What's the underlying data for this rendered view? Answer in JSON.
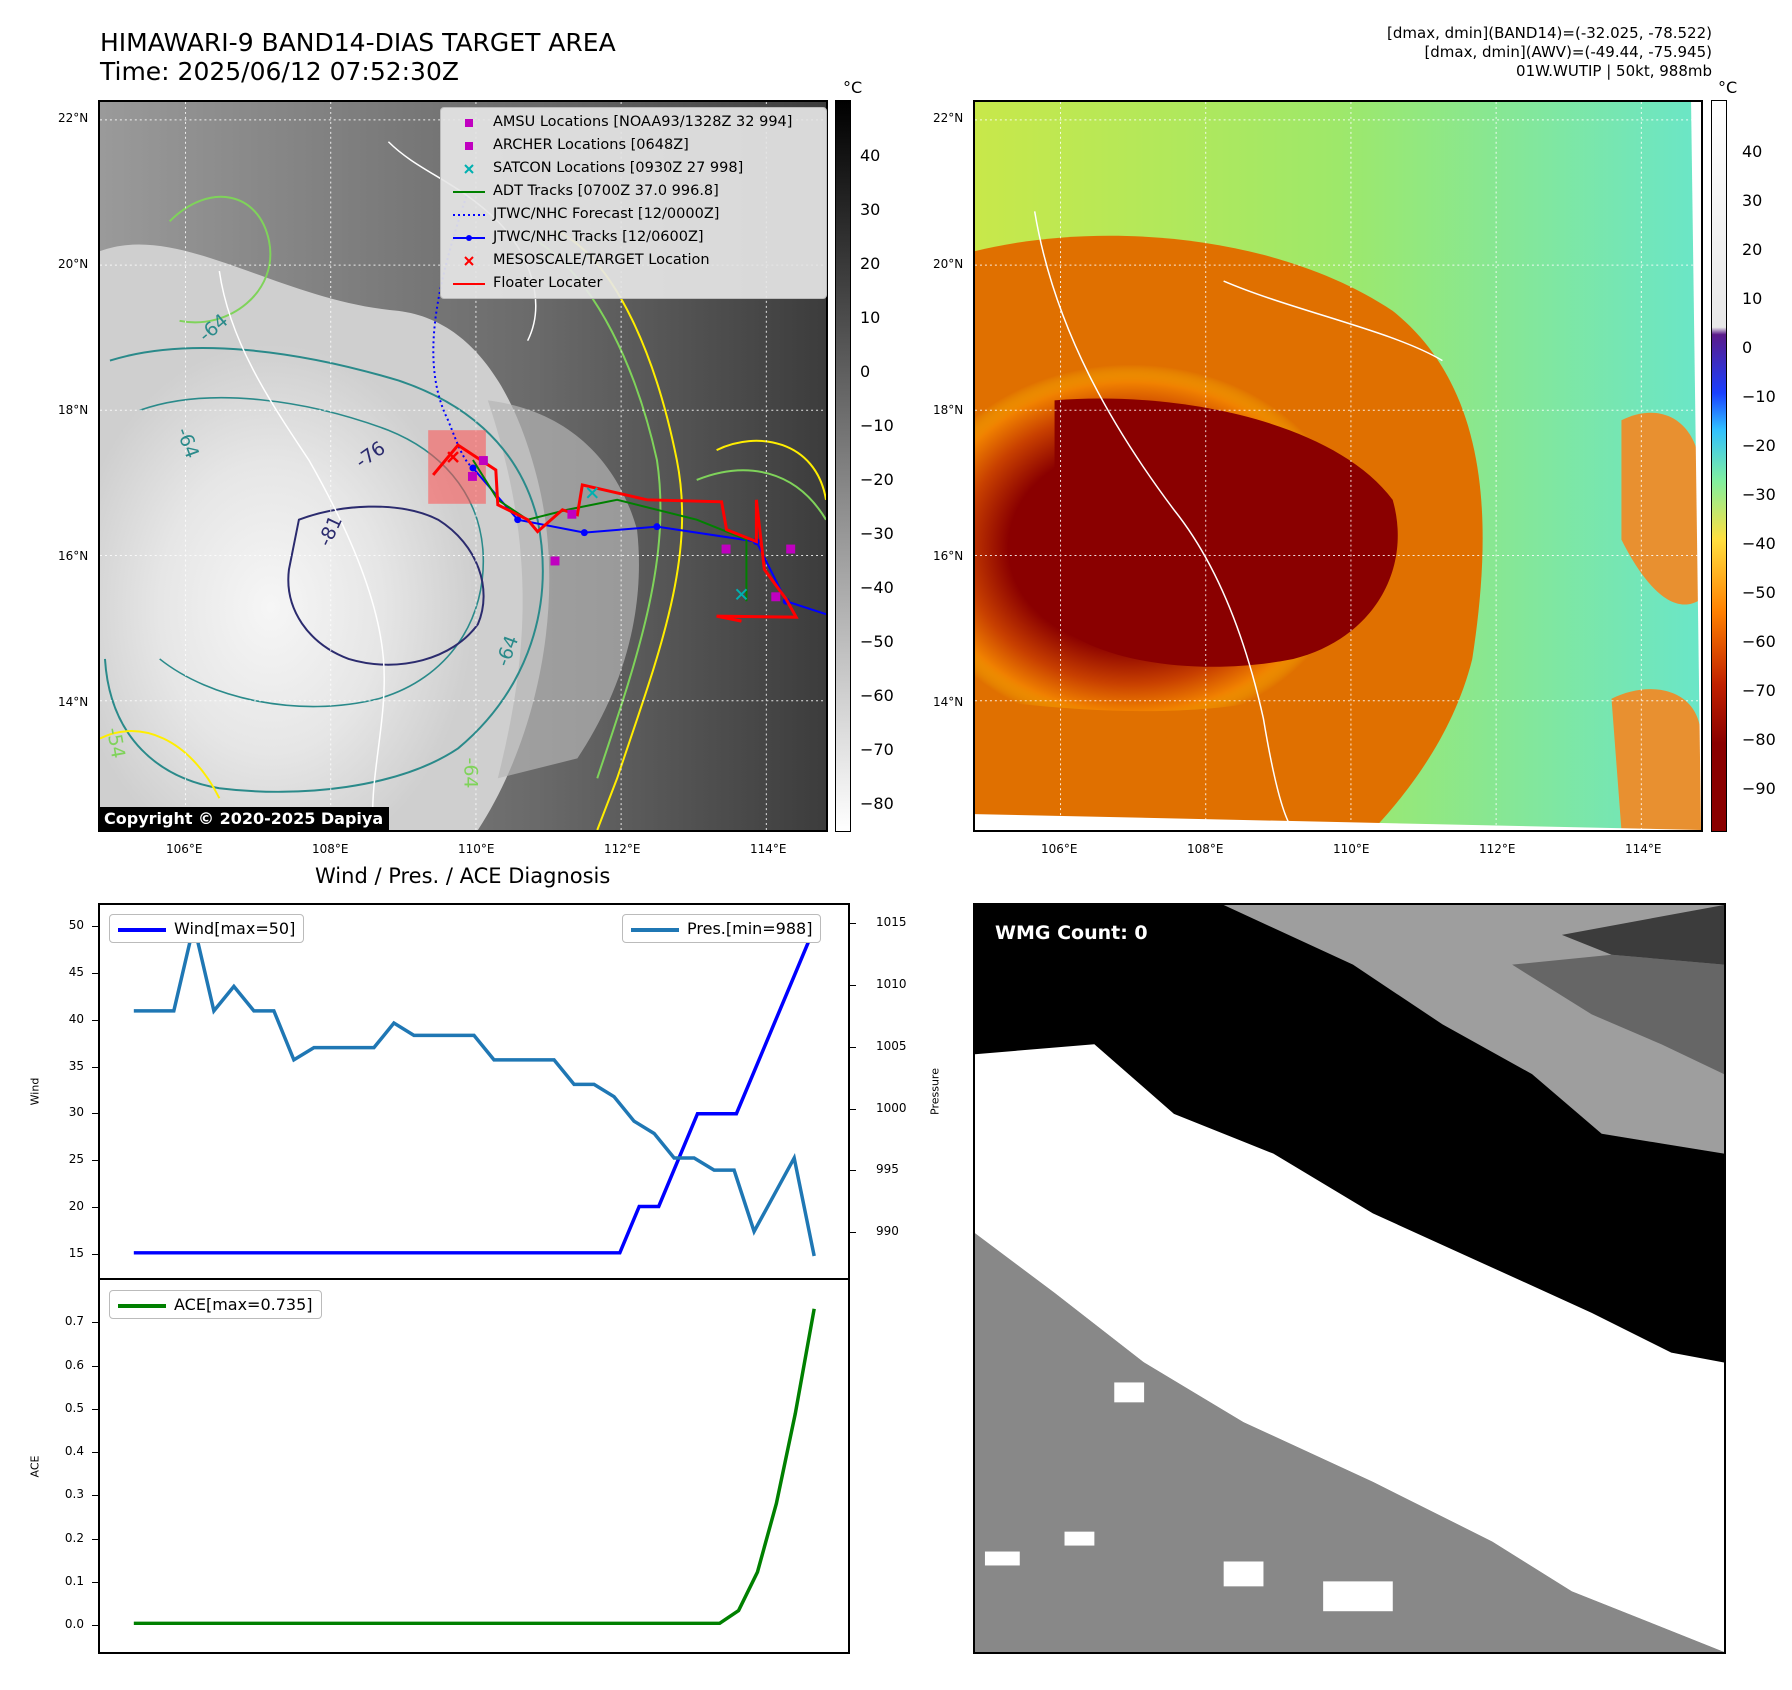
{
  "header": {
    "title_line1": "HIMAWARI-9 BAND14-DIAS TARGET AREA",
    "title_line2": "Time: 2025/06/12 07:52:30Z",
    "info_line1": "[dmax, dmin](BAND14)=(-32.025, -78.522)",
    "info_line2": "[dmax, dmin](AWV)=(-49.44, -75.945)",
    "info_line3": "01W.WUTIP | 50kt, 988mb"
  },
  "map": {
    "lat_labels": [
      "22°N",
      "20°N",
      "18°N",
      "16°N",
      "14°N"
    ],
    "lon_labels": [
      "106°E",
      "108°E",
      "110°E",
      "112°E",
      "114°E"
    ],
    "contour_labels": [
      "-64",
      "-64",
      "-76",
      "-81",
      "-64",
      "-54",
      "-64"
    ],
    "copyright": "Copyright © 2020-2025 Dapiya"
  },
  "legend": {
    "items": [
      {
        "label": "AMSU Locations [NOAA93/1328Z 32 994]",
        "color": "#c000c0",
        "kind": "square"
      },
      {
        "label": "ARCHER Locations [0648Z]",
        "color": "#c000c0",
        "kind": "square"
      },
      {
        "label": "SATCON Locations [0930Z 27 998]",
        "color": "#00b0b0",
        "kind": "x"
      },
      {
        "label": "ADT Tracks [0700Z 37.0 996.8]",
        "color": "#008000",
        "kind": "line"
      },
      {
        "label": "JTWC/NHC Forecast [12/0000Z]",
        "color": "#0000ff",
        "kind": "dotted"
      },
      {
        "label": "JTWC/NHC Tracks [12/0600Z]",
        "color": "#0000ff",
        "kind": "line-dot"
      },
      {
        "label": "MESOSCALE/TARGET Location",
        "color": "#ff0000",
        "kind": "x"
      },
      {
        "label": "Floater Locater",
        "color": "#ff0000",
        "kind": "line"
      }
    ]
  },
  "colorbar_left": {
    "unit": "°C",
    "ticks": [
      "40",
      "30",
      "20",
      "10",
      "0",
      "−10",
      "−20",
      "−30",
      "−40",
      "−50",
      "−60",
      "−70",
      "−80"
    ]
  },
  "colorbar_right": {
    "unit": "°C",
    "ticks": [
      "40",
      "30",
      "20",
      "10",
      "0",
      "−10",
      "−20",
      "−30",
      "−40",
      "−50",
      "−60",
      "−70",
      "−80",
      "−90"
    ]
  },
  "diagnosis": {
    "title": "Wind / Pres. / ACE Diagnosis",
    "wind_legend": "Wind[max=50]",
    "pres_legend": "Pres.[min=988]",
    "ace_legend": "ACE[max=0.735]",
    "wind_axis_label": "Wind",
    "pres_axis_label": "Pressure",
    "ace_axis_label": "ACE"
  },
  "wmg": {
    "label": "WMG Count: 0"
  },
  "colors": {
    "wind": "#0000ff",
    "pressure": "#1f77b4",
    "ace": "#008000"
  },
  "chart_data": [
    {
      "type": "line",
      "id": "wind",
      "series": [
        {
          "name": "Wind[max=50]",
          "values": [
            15,
            15,
            15,
            15,
            15,
            15,
            15,
            15,
            15,
            15,
            15,
            15,
            15,
            15,
            15,
            15,
            15,
            15,
            15,
            15,
            15,
            15,
            15,
            15,
            15,
            15,
            20,
            20,
            25,
            30,
            30,
            30,
            35,
            40,
            45,
            50
          ]
        }
      ],
      "ylim": [
        14,
        51
      ],
      "yticks": [
        15,
        20,
        25,
        30,
        35,
        40,
        45,
        50
      ],
      "ylabel": "Wind"
    },
    {
      "type": "line",
      "id": "pressure",
      "series": [
        {
          "name": "Pres.[min=988]",
          "values": [
            1008,
            1008,
            1008,
            1015,
            1008,
            1010,
            1008,
            1008,
            1004,
            1005,
            1005,
            1005,
            1005,
            1007,
            1006,
            1006,
            1006,
            1006,
            1004,
            1004,
            1004,
            1004,
            1002,
            1002,
            1001,
            999,
            998,
            996,
            996,
            995,
            995,
            990,
            993,
            996,
            988
          ]
        }
      ],
      "ylim": [
        987.5,
        1015.5
      ],
      "yticks": [
        990,
        995,
        1000,
        1005,
        1010,
        1015
      ],
      "ylabel": "Pressure"
    },
    {
      "type": "line",
      "id": "ace",
      "series": [
        {
          "name": "ACE[max=0.735]",
          "values": [
            0,
            0,
            0,
            0,
            0,
            0,
            0,
            0,
            0,
            0,
            0,
            0,
            0,
            0,
            0,
            0,
            0,
            0,
            0,
            0,
            0,
            0,
            0,
            0,
            0,
            0,
            0,
            0,
            0,
            0,
            0,
            0.0,
            0.03,
            0.12,
            0.28,
            0.49,
            0.735
          ]
        }
      ],
      "ylim": [
        -0.03,
        0.77
      ],
      "yticks": [
        0.0,
        0.1,
        0.2,
        0.3,
        0.4,
        0.5,
        0.6,
        0.7
      ],
      "ylabel": "ACE"
    }
  ]
}
